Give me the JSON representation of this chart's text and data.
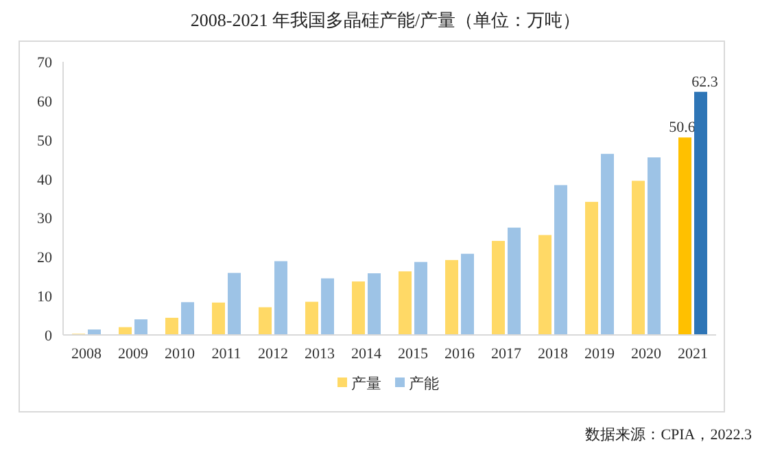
{
  "chart_data": {
    "type": "bar",
    "title": "2008-2021 年我国多晶硅产能/产量（单位：万吨）",
    "categories": [
      "2008",
      "2009",
      "2010",
      "2011",
      "2012",
      "2013",
      "2014",
      "2015",
      "2016",
      "2017",
      "2018",
      "2019",
      "2020",
      "2021"
    ],
    "series": [
      {
        "name": "产量",
        "color": "#ffd966",
        "colors": [
          "#ffd966",
          "#ffd966",
          "#ffd966",
          "#ffd966",
          "#ffd966",
          "#ffd966",
          "#ffd966",
          "#ffd966",
          "#ffd966",
          "#ffd966",
          "#ffd966",
          "#ffd966",
          "#ffd966",
          "#ffc000"
        ],
        "values": [
          0.3,
          2.0,
          4.4,
          8.3,
          7.1,
          8.5,
          13.7,
          16.3,
          19.2,
          24.1,
          25.6,
          34.1,
          39.5,
          50.6
        ],
        "value_labels": [
          null,
          null,
          null,
          null,
          null,
          null,
          null,
          null,
          null,
          null,
          null,
          null,
          null,
          "50.6"
        ]
      },
      {
        "name": "产能",
        "color": "#9dc3e6",
        "colors": [
          "#9dc3e6",
          "#9dc3e6",
          "#9dc3e6",
          "#9dc3e6",
          "#9dc3e6",
          "#9dc3e6",
          "#9dc3e6",
          "#9dc3e6",
          "#9dc3e6",
          "#9dc3e6",
          "#9dc3e6",
          "#9dc3e6",
          "#9dc3e6",
          "#2e75b6"
        ],
        "values": [
          1.4,
          4.0,
          8.4,
          15.9,
          18.9,
          14.5,
          15.8,
          18.7,
          20.8,
          27.5,
          38.4,
          46.4,
          45.5,
          62.3
        ],
        "value_labels": [
          null,
          null,
          null,
          null,
          null,
          null,
          null,
          null,
          null,
          null,
          null,
          null,
          null,
          "62.3"
        ]
      }
    ],
    "ylim": [
      0,
      70
    ],
    "yticks": [
      0,
      10,
      20,
      30,
      40,
      50,
      60,
      70
    ],
    "grid": false,
    "legend": "bottom",
    "annotations": [
      "数据来源：CPIA，2022.3"
    ]
  }
}
